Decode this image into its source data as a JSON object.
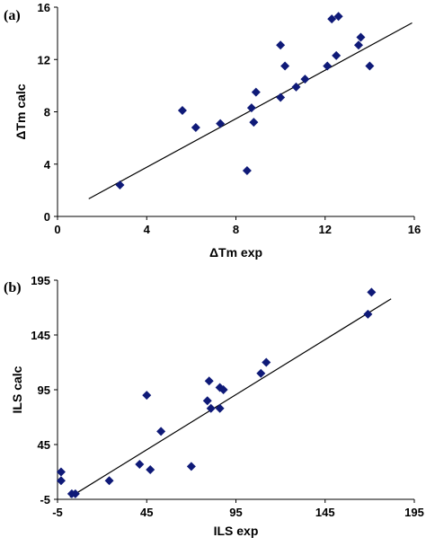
{
  "chart_data": [
    {
      "type": "scatter",
      "panel_label": "(a)",
      "xlabel": "ΔTm exp",
      "ylabel": "ΔTm calc",
      "xlim": [
        0,
        16
      ],
      "ylim": [
        0,
        16
      ],
      "xticks": [
        0,
        4,
        8,
        12,
        16
      ],
      "yticks": [
        0,
        4,
        8,
        12,
        16
      ],
      "grid": false,
      "marker_color": "#0f1a78",
      "points": [
        {
          "x": 2.8,
          "y": 2.4
        },
        {
          "x": 5.6,
          "y": 8.1
        },
        {
          "x": 6.2,
          "y": 6.8
        },
        {
          "x": 7.3,
          "y": 7.1
        },
        {
          "x": 8.5,
          "y": 3.5
        },
        {
          "x": 8.7,
          "y": 8.3
        },
        {
          "x": 8.8,
          "y": 7.2
        },
        {
          "x": 8.9,
          "y": 9.5
        },
        {
          "x": 10.0,
          "y": 9.1
        },
        {
          "x": 10.0,
          "y": 13.1
        },
        {
          "x": 10.2,
          "y": 11.5
        },
        {
          "x": 10.7,
          "y": 9.9
        },
        {
          "x": 11.1,
          "y": 10.5
        },
        {
          "x": 12.1,
          "y": 11.5
        },
        {
          "x": 12.3,
          "y": 15.1
        },
        {
          "x": 12.5,
          "y": 12.3
        },
        {
          "x": 12.6,
          "y": 15.3
        },
        {
          "x": 13.5,
          "y": 13.1
        },
        {
          "x": 13.6,
          "y": 13.7
        },
        {
          "x": 14.0,
          "y": 11.5
        }
      ],
      "trendline": {
        "x": [
          1.4,
          15.9
        ],
        "y": [
          1.35,
          14.8
        ]
      }
    },
    {
      "type": "scatter",
      "panel_label": "(b)",
      "xlabel": "ILS exp",
      "ylabel": "ILS calc",
      "xlim": [
        -5,
        195
      ],
      "ylim": [
        -5,
        195
      ],
      "xticks": [
        -5,
        45,
        95,
        145,
        195
      ],
      "yticks": [
        -5,
        45,
        95,
        145,
        195
      ],
      "grid": false,
      "marker_color": "#0f1a78",
      "points": [
        {
          "x": -3,
          "y": 20
        },
        {
          "x": -3,
          "y": 12
        },
        {
          "x": 3,
          "y": 0
        },
        {
          "x": 5,
          "y": 0
        },
        {
          "x": 24,
          "y": 12
        },
        {
          "x": 41,
          "y": 27
        },
        {
          "x": 45,
          "y": 90
        },
        {
          "x": 47,
          "y": 22
        },
        {
          "x": 53,
          "y": 57
        },
        {
          "x": 70,
          "y": 25
        },
        {
          "x": 79,
          "y": 85
        },
        {
          "x": 80,
          "y": 103
        },
        {
          "x": 81,
          "y": 78
        },
        {
          "x": 86,
          "y": 97
        },
        {
          "x": 86,
          "y": 78
        },
        {
          "x": 88,
          "y": 95
        },
        {
          "x": 109,
          "y": 110
        },
        {
          "x": 112,
          "y": 120
        },
        {
          "x": 169,
          "y": 164
        },
        {
          "x": 171,
          "y": 184
        }
      ],
      "trendline": {
        "x": [
          2,
          182
        ],
        "y": [
          -3,
          178
        ]
      }
    }
  ]
}
